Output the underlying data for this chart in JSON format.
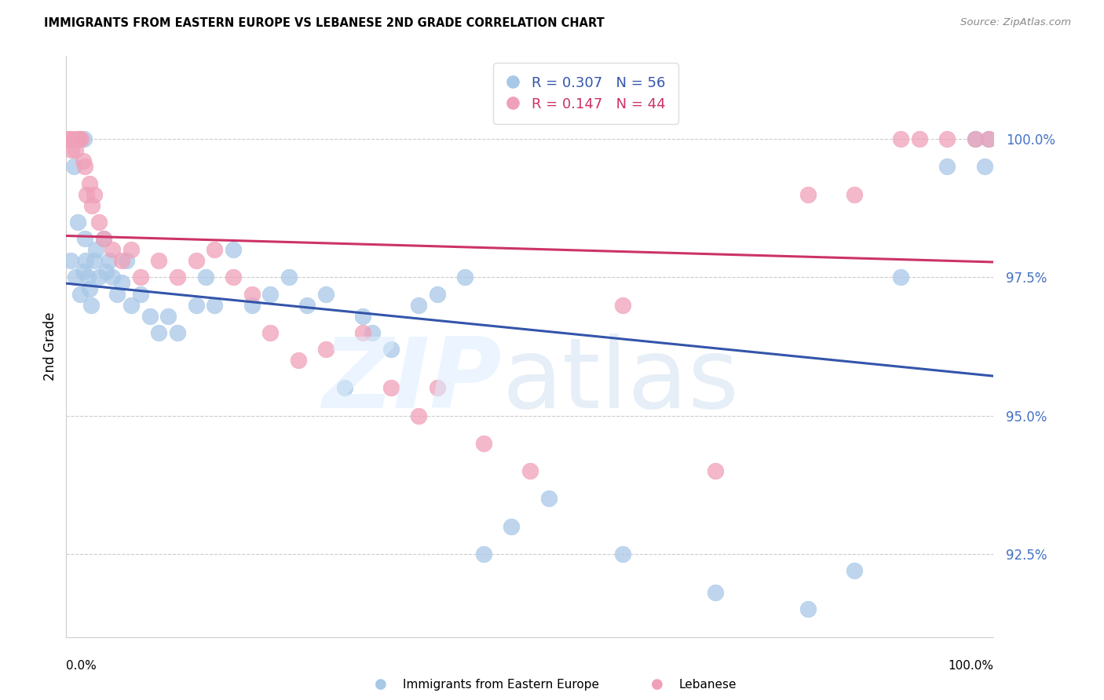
{
  "title": "IMMIGRANTS FROM EASTERN EUROPE VS LEBANESE 2ND GRADE CORRELATION CHART",
  "source": "Source: ZipAtlas.com",
  "ylabel": "2nd Grade",
  "yticks": [
    92.5,
    95.0,
    97.5,
    100.0
  ],
  "ytick_labels": [
    "92.5%",
    "95.0%",
    "97.5%",
    "100.0%"
  ],
  "xlim": [
    0.0,
    100.0
  ],
  "ylim": [
    91.0,
    101.5
  ],
  "blue_color": "#A8C8E8",
  "pink_color": "#F0A0B8",
  "blue_line_color": "#3355AA",
  "pink_line_color": "#CC3366",
  "legend_blue_R": "0.307",
  "legend_blue_N": "56",
  "legend_pink_R": "0.147",
  "legend_pink_N": "44",
  "legend_label_blue": "Immigrants from Eastern Europe",
  "legend_label_pink": "Lebanese",
  "blue_scatter_x": [
    0.5,
    0.8,
    1.0,
    1.2,
    1.5,
    1.8,
    1.9,
    2.0,
    2.1,
    2.3,
    2.5,
    2.7,
    3.0,
    3.2,
    3.5,
    4.0,
    4.3,
    4.6,
    5.0,
    5.5,
    6.0,
    6.5,
    7.0,
    8.0,
    9.0,
    10.0,
    11.0,
    12.0,
    14.0,
    15.0,
    16.0,
    18.0,
    20.0,
    22.0,
    24.0,
    26.0,
    28.0,
    30.0,
    32.0,
    33.0,
    35.0,
    38.0,
    40.0,
    43.0,
    45.0,
    48.0,
    52.0,
    60.0,
    70.0,
    80.0,
    85.0,
    90.0,
    95.0,
    98.0,
    99.0,
    99.5
  ],
  "blue_scatter_y": [
    97.8,
    99.5,
    97.5,
    98.5,
    97.2,
    97.6,
    100.0,
    98.2,
    97.8,
    97.5,
    97.3,
    97.0,
    97.8,
    98.0,
    97.5,
    98.2,
    97.6,
    97.8,
    97.5,
    97.2,
    97.4,
    97.8,
    97.0,
    97.2,
    96.8,
    96.5,
    96.8,
    96.5,
    97.0,
    97.5,
    97.0,
    98.0,
    97.0,
    97.2,
    97.5,
    97.0,
    97.2,
    95.5,
    96.8,
    96.5,
    96.2,
    97.0,
    97.2,
    97.5,
    92.5,
    93.0,
    93.5,
    92.5,
    91.8,
    91.5,
    92.2,
    97.5,
    99.5,
    100.0,
    99.5,
    100.0
  ],
  "pink_scatter_x": [
    0.2,
    0.4,
    0.6,
    0.8,
    1.0,
    1.2,
    1.4,
    1.6,
    1.8,
    2.0,
    2.2,
    2.5,
    2.8,
    3.0,
    3.5,
    4.0,
    5.0,
    6.0,
    7.0,
    8.0,
    10.0,
    12.0,
    14.0,
    16.0,
    18.0,
    20.0,
    22.0,
    25.0,
    28.0,
    32.0,
    35.0,
    38.0,
    40.0,
    45.0,
    50.0,
    60.0,
    70.0,
    80.0,
    85.0,
    90.0,
    92.0,
    95.0,
    98.0,
    99.5
  ],
  "pink_scatter_y": [
    100.0,
    100.0,
    99.8,
    100.0,
    99.8,
    100.0,
    100.0,
    100.0,
    99.6,
    99.5,
    99.0,
    99.2,
    98.8,
    99.0,
    98.5,
    98.2,
    98.0,
    97.8,
    98.0,
    97.5,
    97.8,
    97.5,
    97.8,
    98.0,
    97.5,
    97.2,
    96.5,
    96.0,
    96.2,
    96.5,
    95.5,
    95.0,
    95.5,
    94.5,
    94.0,
    97.0,
    94.0,
    99.0,
    99.0,
    100.0,
    100.0,
    100.0,
    100.0,
    100.0
  ]
}
